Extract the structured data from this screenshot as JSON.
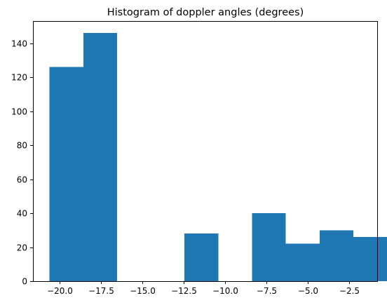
{
  "chart_data": {
    "type": "bar",
    "title": "Histogram of doppler angles (degrees)",
    "xlabel": "",
    "ylabel": "",
    "bin_edges": [
      -20.6,
      -18.56,
      -16.52,
      -14.48,
      -12.44,
      -10.4,
      -8.36,
      -6.32,
      -4.28,
      -2.24,
      -0.2
    ],
    "bins": [
      {
        "x0": -20.6,
        "x1": -18.56,
        "count": 126
      },
      {
        "x0": -18.56,
        "x1": -16.52,
        "count": 146
      },
      {
        "x0": -16.52,
        "x1": -14.48,
        "count": 0
      },
      {
        "x0": -14.48,
        "x1": -12.44,
        "count": 0
      },
      {
        "x0": -12.44,
        "x1": -10.4,
        "count": 28
      },
      {
        "x0": -10.4,
        "x1": -8.36,
        "count": 0
      },
      {
        "x0": -8.36,
        "x1": -6.32,
        "count": 40
      },
      {
        "x0": -6.32,
        "x1": -4.28,
        "count": 22
      },
      {
        "x0": -4.28,
        "x1": -2.24,
        "count": 30
      },
      {
        "x0": -2.24,
        "x1": -0.2,
        "count": 26
      }
    ],
    "xlim": [
      -21.6,
      -0.8
    ],
    "ylim": [
      0,
      153
    ],
    "xticks": [
      -20.0,
      -17.5,
      -15.0,
      -12.5,
      -10.0,
      -7.5,
      -5.0,
      -2.5
    ],
    "xtick_labels": [
      "−20.0",
      "−17.5",
      "−15.0",
      "−12.5",
      "−10.0",
      "−7.5",
      "−5.0",
      "−2.5"
    ],
    "yticks": [
      0,
      20,
      40,
      60,
      80,
      100,
      120,
      140
    ],
    "ytick_labels": [
      "0",
      "20",
      "40",
      "60",
      "80",
      "100",
      "120",
      "140"
    ],
    "grid": false,
    "bar_color": "#1f77b4"
  }
}
